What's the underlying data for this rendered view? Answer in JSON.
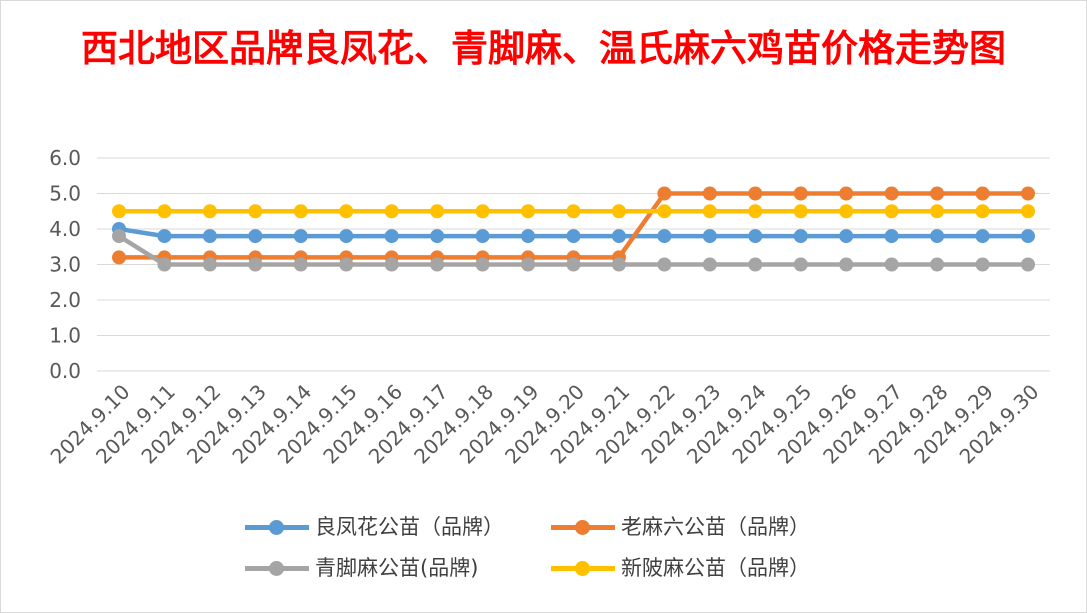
{
  "chart_data": {
    "type": "line",
    "title": "西北地区品牌良凤花、青脚麻、温氏麻六鸡苗价格走势图",
    "xlabel": "",
    "ylabel": "",
    "ylim": [
      0,
      6
    ],
    "yticks": [
      "0.0",
      "1.0",
      "2.0",
      "3.0",
      "4.0",
      "5.0",
      "6.0"
    ],
    "grid": true,
    "legend_position": "bottom",
    "categories": [
      "2024.9.10",
      "2024.9.11",
      "2024.9.12",
      "2024.9.13",
      "2024.9.14",
      "2024.9.15",
      "2024.9.16",
      "2024.9.17",
      "2024.9.18",
      "2024.9.19",
      "2024.9.20",
      "2024.9.21",
      "2024.9.22",
      "2024.9.23",
      "2024.9.24",
      "2024.9.25",
      "2024.9.26",
      "2024.9.27",
      "2024.9.28",
      "2024.9.29",
      "2024.9.30"
    ],
    "series": [
      {
        "name": "良凤花公苗（品牌）",
        "color": "#5b9bd5",
        "values": [
          4.0,
          3.8,
          3.8,
          3.8,
          3.8,
          3.8,
          3.8,
          3.8,
          3.8,
          3.8,
          3.8,
          3.8,
          3.8,
          3.8,
          3.8,
          3.8,
          3.8,
          3.8,
          3.8,
          3.8,
          3.8
        ]
      },
      {
        "name": "老麻六公苗（品牌）",
        "color": "#ed7d31",
        "values": [
          3.2,
          3.2,
          3.2,
          3.2,
          3.2,
          3.2,
          3.2,
          3.2,
          3.2,
          3.2,
          3.2,
          3.2,
          5.0,
          5.0,
          5.0,
          5.0,
          5.0,
          5.0,
          5.0,
          5.0,
          5.0
        ]
      },
      {
        "name": "青脚麻公苗(品牌)",
        "color": "#a5a5a5",
        "values": [
          3.8,
          3.0,
          3.0,
          3.0,
          3.0,
          3.0,
          3.0,
          3.0,
          3.0,
          3.0,
          3.0,
          3.0,
          3.0,
          3.0,
          3.0,
          3.0,
          3.0,
          3.0,
          3.0,
          3.0,
          3.0
        ]
      },
      {
        "name": "新陂麻公苗（品牌）",
        "color": "#ffc000",
        "values": [
          4.5,
          4.5,
          4.5,
          4.5,
          4.5,
          4.5,
          4.5,
          4.5,
          4.5,
          4.5,
          4.5,
          4.5,
          4.5,
          4.5,
          4.5,
          4.5,
          4.5,
          4.5,
          4.5,
          4.5,
          4.5
        ]
      }
    ]
  }
}
